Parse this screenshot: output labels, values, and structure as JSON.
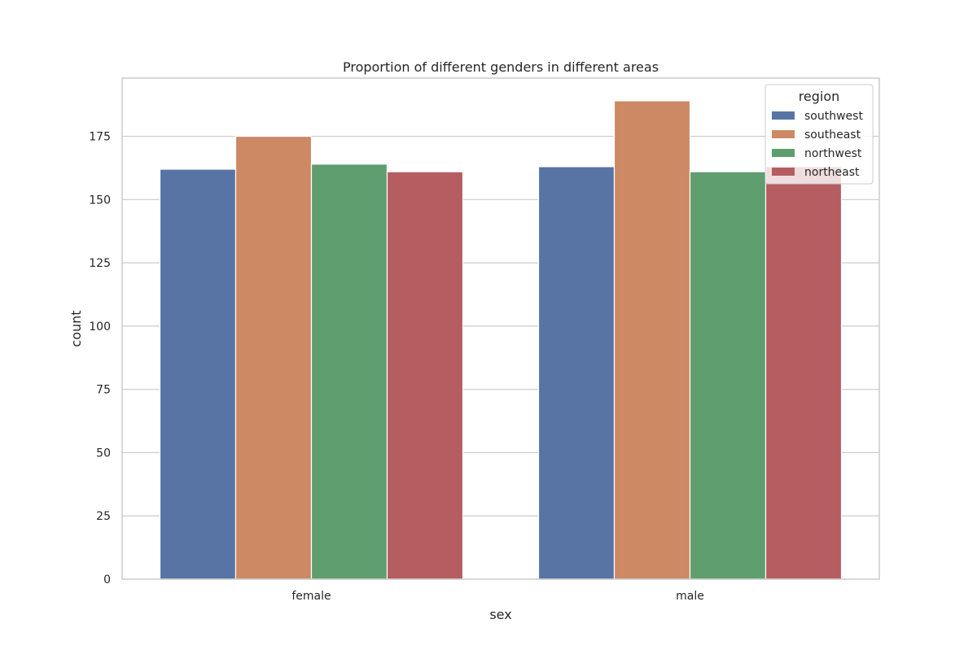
{
  "chart_data": {
    "type": "bar",
    "title": "Proportion of different genders in different areas",
    "xlabel": "sex",
    "ylabel": "count",
    "categories": [
      "female",
      "male"
    ],
    "ylim": [
      0,
      198
    ],
    "yticks": [
      0,
      25,
      50,
      75,
      100,
      125,
      150,
      175
    ],
    "grid": true,
    "legend": {
      "title": "region",
      "placement": "top-right"
    },
    "series": [
      {
        "name": "southwest",
        "color": "#5874a4",
        "values": [
          162,
          163
        ]
      },
      {
        "name": "southeast",
        "color": "#cc8963",
        "values": [
          175,
          189
        ]
      },
      {
        "name": "northwest",
        "color": "#5f9e6e",
        "values": [
          164,
          161
        ]
      },
      {
        "name": "northeast",
        "color": "#b55d60",
        "values": [
          161,
          163
        ]
      }
    ]
  }
}
